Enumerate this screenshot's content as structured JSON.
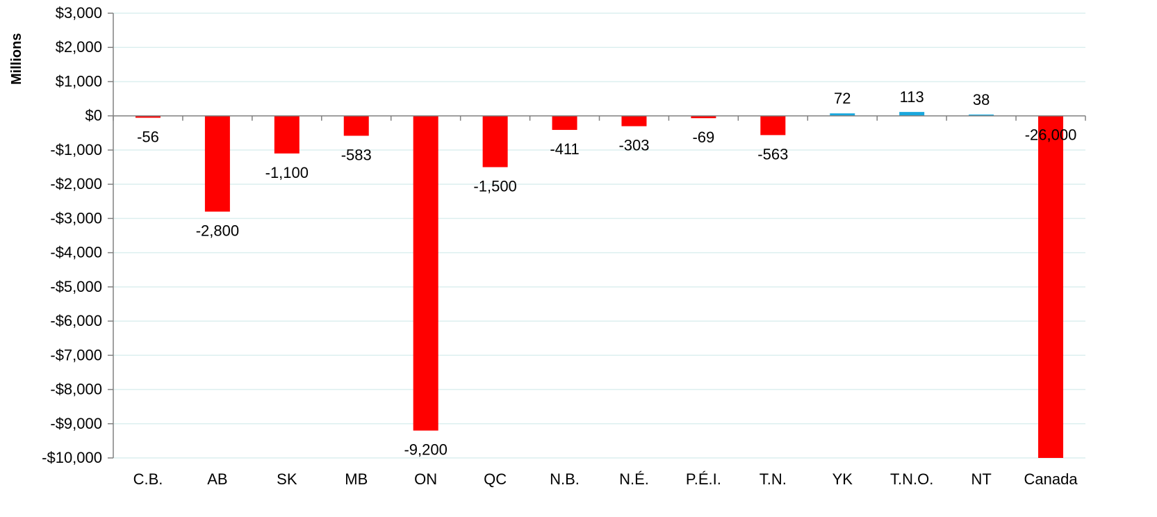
{
  "chart_data": {
    "type": "bar",
    "ylabel": "Millions",
    "ylim": [
      -10000,
      3000
    ],
    "y_ticks": [
      3000,
      2000,
      1000,
      0,
      -1000,
      -2000,
      -3000,
      -4000,
      -5000,
      -6000,
      -7000,
      -8000,
      -9000,
      -10000
    ],
    "y_tick_labels": [
      "$3,000",
      "$2,000",
      "$1,000",
      "$0",
      "-$1,000",
      "-$2,000",
      "-$3,000",
      "-$4,000",
      "-$5,000",
      "-$6,000",
      "-$7,000",
      "-$8,000",
      "-$9,000",
      "-$10,000"
    ],
    "categories": [
      "C.B.",
      "AB",
      "SK",
      "MB",
      "ON",
      "QC",
      "N.B.",
      "N.É.",
      "P.É.I.",
      "T.N.",
      "YK",
      "T.N.O.",
      "NT",
      "Canada"
    ],
    "values": [
      -56,
      -2800,
      -1100,
      -583,
      -9200,
      -1500,
      -411,
      -303,
      -69,
      -563,
      72,
      113,
      38,
      -26000
    ],
    "data_labels": [
      "-56",
      "-2,800",
      "-1,100",
      "-583",
      "-9,200",
      "-1,500",
      "-411",
      "-303",
      "-69",
      "-563",
      "72",
      "113",
      "38",
      "-26,000"
    ],
    "grid": true,
    "legend": "none"
  },
  "colors": {
    "negative": "#ff0000",
    "positive": "#1aa7dc",
    "grid": "#dcefef",
    "axis": "#808080"
  }
}
